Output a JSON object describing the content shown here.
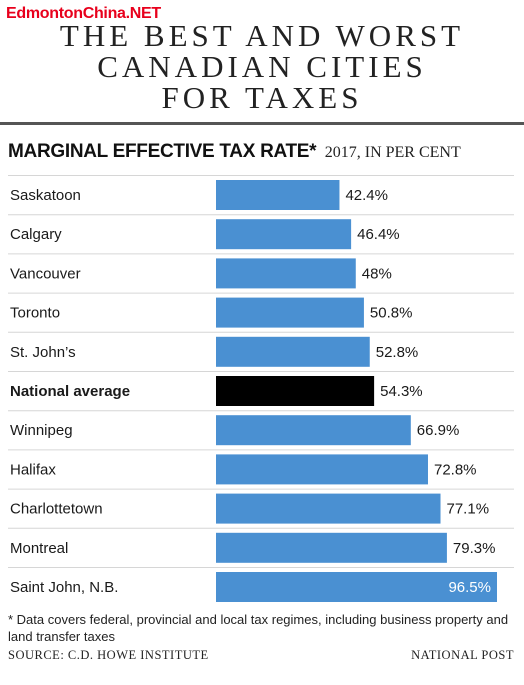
{
  "watermark": "EdmontonChina.NET",
  "title_lines": [
    "THE BEST AND WORST",
    "CANADIAN CITIES",
    "FOR TAXES"
  ],
  "subtitle": {
    "main": "MARGINAL EFFECTIVE TAX RATE*",
    "sub": "2017, IN PER CENT"
  },
  "chart_data": {
    "type": "bar",
    "orientation": "horizontal",
    "categories": [
      "Saskatoon",
      "Calgary",
      "Vancouver",
      "Toronto",
      "St. John’s",
      "National average",
      "Winnipeg",
      "Halifax",
      "Charlottetown",
      "Montreal",
      "Saint John, N.B."
    ],
    "values": [
      42.4,
      46.4,
      48,
      50.8,
      52.8,
      54.3,
      66.9,
      72.8,
      77.1,
      79.3,
      96.5
    ],
    "value_labels": [
      "42.4%",
      "46.4%",
      "48%",
      "50.8%",
      "52.8%",
      "54.3%",
      "66.9%",
      "72.8%",
      "77.1%",
      "79.3%",
      "96.5%"
    ],
    "highlight_category": "National average",
    "xlim": [
      0,
      96.5
    ],
    "bar_color": "#4a90d2",
    "highlight_color": "#000000",
    "grid": false
  },
  "footnote": "* Data covers federal, provincial and local tax regimes, including business property and land transfer taxes",
  "source": "SOURCE: C.D. HOWE INSTITUTE",
  "credit": "NATIONAL POST"
}
